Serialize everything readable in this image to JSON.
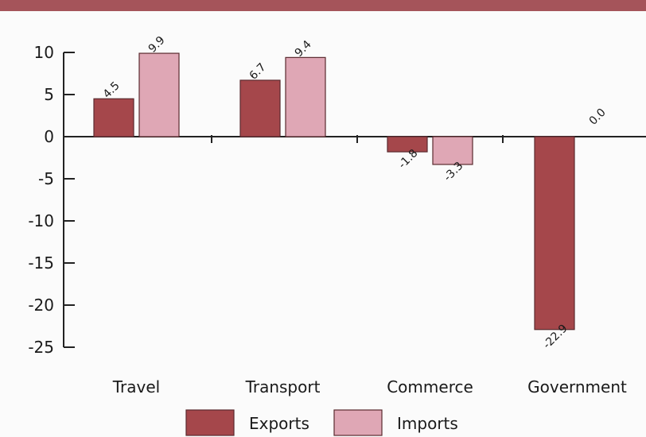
{
  "chart_data": {
    "type": "bar",
    "categories": [
      "Travel",
      "Transport",
      "Commerce",
      "Government"
    ],
    "series": [
      {
        "name": "Exports",
        "values": [
          4.5,
          6.7,
          -1.8,
          -22.9
        ],
        "labels": [
          "4.5",
          "6.7",
          "-1.8",
          "-22.9"
        ],
        "color": "#a5474b"
      },
      {
        "name": "Imports",
        "values": [
          9.9,
          9.4,
          -3.3,
          0.0
        ],
        "labels": [
          "9.9",
          "9.4",
          "-3.3",
          "0.0"
        ],
        "color": "#dfa7b5"
      }
    ],
    "ylim": [
      -25,
      10
    ],
    "yticks": [
      10,
      5,
      0,
      -5,
      -10,
      -15,
      -20,
      -25
    ],
    "ytick_labels": [
      "10",
      "5",
      "0",
      "-5",
      "-10",
      "-15",
      "-20",
      "-25"
    ],
    "legend_position": "bottom",
    "grid": false,
    "header_bar_color": "#a5545a"
  }
}
